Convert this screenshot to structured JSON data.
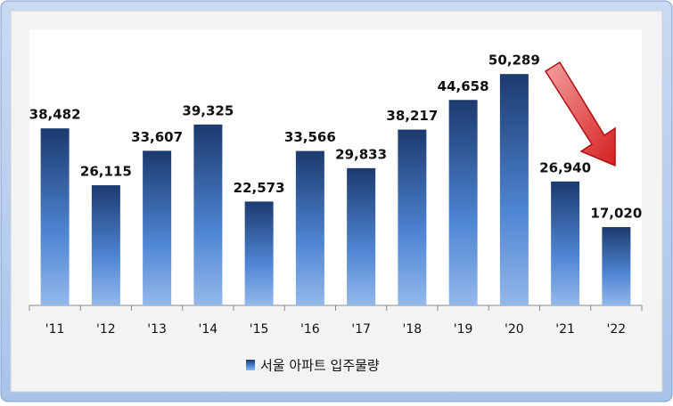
{
  "chart_data": {
    "type": "bar",
    "categories": [
      "'11",
      "'12",
      "'13",
      "'14",
      "'15",
      "'16",
      "'17",
      "'18",
      "'19",
      "'20",
      "'21",
      "'22"
    ],
    "series": [
      {
        "name": "서울 아파트 입주물량",
        "color": "#2a5298",
        "values": [
          38482,
          26115,
          33607,
          39325,
          22573,
          33566,
          29833,
          38217,
          44658,
          50289,
          26940,
          17020
        ],
        "value_labels": [
          "38,482",
          "26,115",
          "33,607",
          "39,325",
          "22,573",
          "33,566",
          "29,833",
          "38,217",
          "44,658",
          "50,289",
          "26,940",
          "17,020"
        ]
      }
    ],
    "ylim": [
      0,
      60000
    ],
    "legend": "bottom"
  }
}
